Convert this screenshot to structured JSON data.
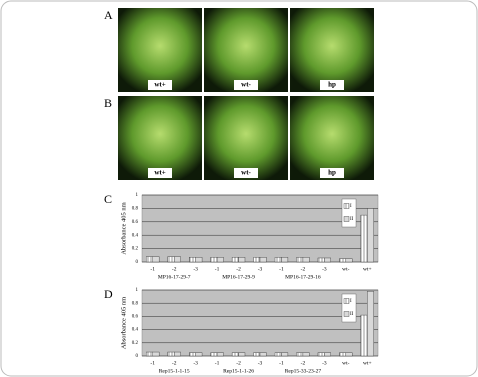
{
  "panels": [
    {
      "panel": "A",
      "photos": [
        "wt+",
        "wt-",
        "hp"
      ]
    },
    {
      "panel": "B",
      "photos": [
        "wt+",
        "wt-",
        "hp"
      ]
    }
  ],
  "chart_data": [
    {
      "type": "bar",
      "panel": "C",
      "ylabel": "Absorbance 405 nm",
      "categories": [
        "-1",
        "-2",
        "-3",
        "-1",
        "-2",
        "-3",
        "-1",
        "-2",
        "-3",
        "wt-",
        "wt+"
      ],
      "group_labels": [
        "MP16-17-29-7",
        "MP16-17-29-9",
        "MP16-17-29-16"
      ],
      "series": [
        {
          "name": "I",
          "color": "#ffffff",
          "values": [
            0.08,
            0.08,
            0.07,
            0.07,
            0.07,
            0.07,
            0.07,
            0.07,
            0.06,
            0.05,
            0.7
          ]
        },
        {
          "name": "II",
          "color": "#d9d9d9",
          "values": [
            0.08,
            0.08,
            0.07,
            0.07,
            0.07,
            0.07,
            0.07,
            0.07,
            0.06,
            0.05,
            0.8
          ]
        }
      ],
      "ylim": [
        0,
        1
      ],
      "yticks": [
        0,
        0.2,
        0.4,
        0.6,
        0.8,
        1
      ],
      "grid": true,
      "legend": "upper right"
    },
    {
      "type": "bar",
      "panel": "D",
      "ylabel": "Absorbance 405 nm",
      "categories": [
        "-1",
        "-2",
        "-3",
        "-1",
        "-2",
        "-3",
        "-1",
        "-2",
        "-3",
        "wt-",
        "wt+"
      ],
      "group_labels": [
        "Rep15-1-1-15",
        "Rep15-1-1-26",
        "Rep15-33-23-27"
      ],
      "series": [
        {
          "name": "I",
          "color": "#ffffff",
          "values": [
            0.06,
            0.06,
            0.05,
            0.05,
            0.05,
            0.05,
            0.05,
            0.05,
            0.05,
            0.05,
            0.62
          ]
        },
        {
          "name": "II",
          "color": "#d9d9d9",
          "values": [
            0.06,
            0.06,
            0.05,
            0.05,
            0.05,
            0.05,
            0.05,
            0.05,
            0.05,
            0.05,
            0.98
          ]
        }
      ],
      "ylim": [
        0,
        1
      ],
      "yticks": [
        0,
        0.2,
        0.4,
        0.6,
        0.8,
        1
      ],
      "grid": true,
      "legend": "upper right"
    }
  ]
}
